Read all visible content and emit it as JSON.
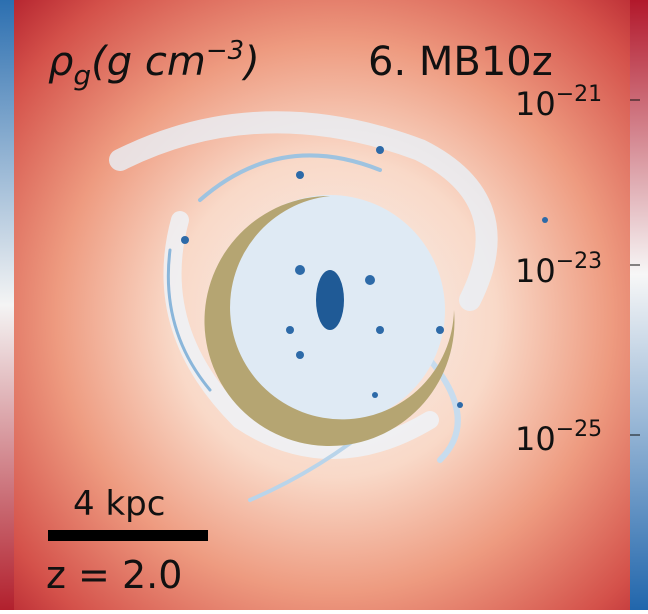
{
  "panel": {
    "title": {
      "symbol": "ρ",
      "subscript": "g",
      "unit": "(g cm",
      "exponent": "−3",
      "close": ")"
    },
    "label": "6. MB10z",
    "colorbar_ticks": [
      {
        "base": "10",
        "exponent": "−21"
      },
      {
        "base": "10",
        "exponent": "−23"
      },
      {
        "base": "10",
        "exponent": "−25"
      }
    ],
    "scale_bar": "4 kpc",
    "redshift": "z = 2.0"
  }
}
